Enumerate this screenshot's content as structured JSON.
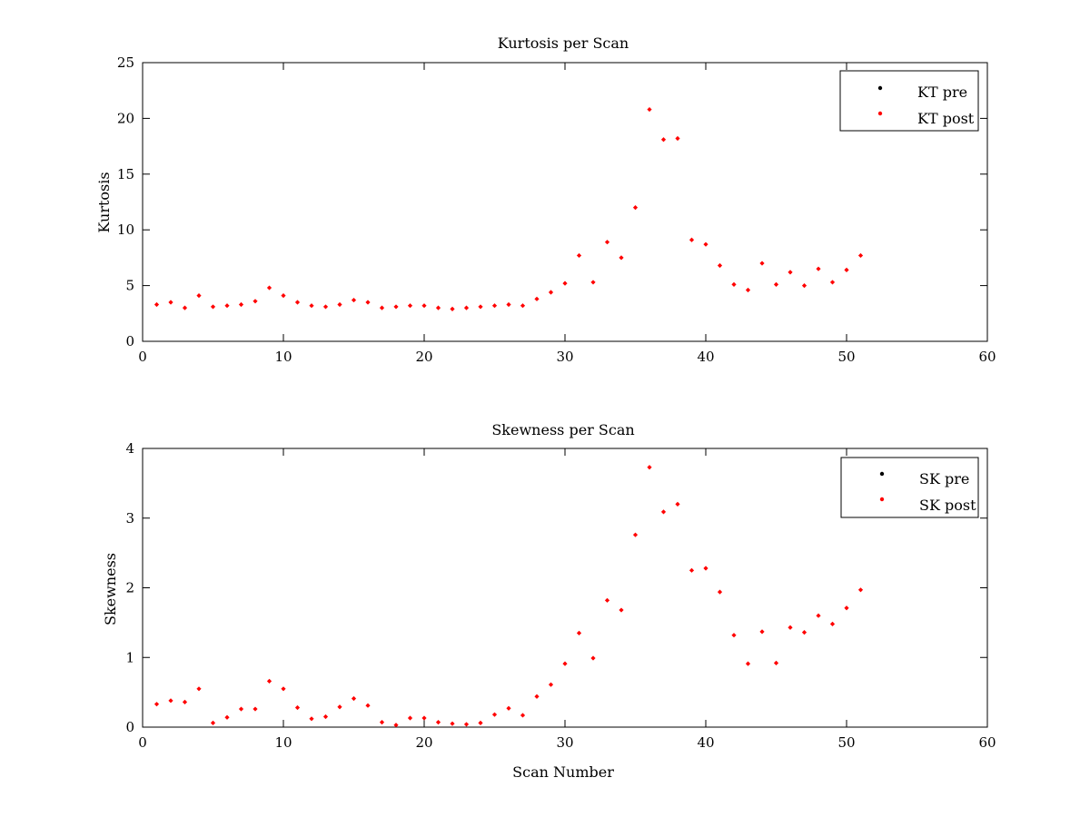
{
  "chart_data": [
    {
      "type": "scatter",
      "title": "Kurtosis per Scan",
      "xlabel": "",
      "ylabel": "Kurtosis",
      "xlim": [
        0,
        60
      ],
      "ylim": [
        0,
        25
      ],
      "xticks": [
        0,
        10,
        20,
        30,
        40,
        50,
        60
      ],
      "yticks": [
        0,
        5,
        10,
        15,
        20,
        25
      ],
      "legend_position": "top-right",
      "series": [
        {
          "name": "KT pre",
          "color": "#000000",
          "x": [],
          "values": []
        },
        {
          "name": "KT post",
          "color": "#ff0000",
          "x": [
            1,
            2,
            3,
            4,
            5,
            6,
            7,
            8,
            9,
            10,
            11,
            12,
            13,
            14,
            15,
            16,
            17,
            18,
            19,
            20,
            21,
            22,
            23,
            24,
            25,
            26,
            27,
            28,
            29,
            30,
            31,
            32,
            33,
            34,
            35,
            36,
            37,
            38,
            39,
            40,
            41,
            42,
            43,
            44,
            45,
            46,
            47,
            48,
            49,
            50,
            51
          ],
          "values": [
            3.3,
            3.5,
            3.0,
            4.1,
            3.1,
            3.2,
            3.3,
            3.6,
            4.8,
            4.1,
            3.5,
            3.2,
            3.1,
            3.3,
            3.7,
            3.5,
            3.0,
            3.1,
            3.2,
            3.2,
            3.0,
            2.9,
            3.0,
            3.1,
            3.2,
            3.3,
            3.2,
            3.8,
            4.4,
            5.2,
            7.7,
            5.3,
            8.9,
            7.5,
            12.0,
            20.8,
            18.1,
            18.2,
            9.1,
            8.7,
            6.8,
            5.1,
            4.6,
            7.0,
            5.1,
            6.2,
            5.0,
            6.5,
            5.3,
            6.4,
            7.7
          ]
        }
      ]
    },
    {
      "type": "scatter",
      "title": "Skewness per Scan",
      "xlabel": "Scan Number",
      "ylabel": "Skewness",
      "xlim": [
        0,
        60
      ],
      "ylim": [
        0,
        4
      ],
      "xticks": [
        0,
        10,
        20,
        30,
        40,
        50,
        60
      ],
      "yticks": [
        0,
        1,
        2,
        3,
        4
      ],
      "legend_position": "top-right",
      "series": [
        {
          "name": "SK pre",
          "color": "#000000",
          "x": [],
          "values": []
        },
        {
          "name": "SK post",
          "color": "#ff0000",
          "x": [
            1,
            2,
            3,
            4,
            5,
            6,
            7,
            8,
            9,
            10,
            11,
            12,
            13,
            14,
            15,
            16,
            17,
            18,
            19,
            20,
            21,
            22,
            23,
            24,
            25,
            26,
            27,
            28,
            29,
            30,
            31,
            32,
            33,
            34,
            35,
            36,
            37,
            38,
            39,
            40,
            41,
            42,
            43,
            44,
            45,
            46,
            47,
            48,
            49,
            50,
            51
          ],
          "values": [
            0.33,
            0.38,
            0.36,
            0.55,
            0.06,
            0.14,
            0.26,
            0.26,
            0.66,
            0.55,
            0.28,
            0.12,
            0.15,
            0.29,
            0.41,
            0.31,
            0.07,
            0.03,
            0.13,
            0.13,
            0.07,
            0.05,
            0.04,
            0.06,
            0.18,
            0.27,
            0.17,
            0.44,
            0.61,
            0.91,
            1.35,
            0.99,
            1.82,
            1.68,
            2.76,
            3.73,
            3.09,
            3.2,
            2.25,
            2.28,
            1.94,
            1.32,
            0.91,
            1.37,
            0.92,
            1.43,
            1.36,
            1.6,
            1.48,
            1.71,
            1.97
          ]
        }
      ]
    }
  ]
}
